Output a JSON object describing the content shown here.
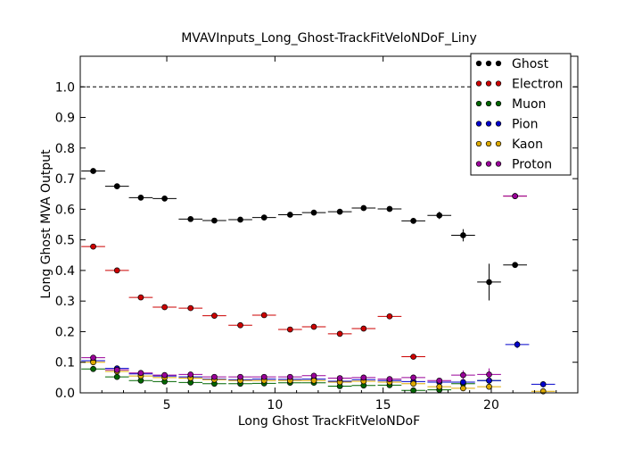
{
  "chart_data": {
    "type": "scatter",
    "title": "MVAVInputs_Long_Ghost-TrackFitVeloNDoF_Liny",
    "xlabel": "Long Ghost TrackFitVeloNDoF",
    "ylabel": "Long Ghost MVA Output",
    "xlim": [
      1,
      24
    ],
    "ylim": [
      0,
      1.1
    ],
    "xticks": [
      5,
      10,
      15,
      20
    ],
    "yticks": [
      0.0,
      0.1,
      0.2,
      0.3,
      0.4,
      0.5,
      0.6,
      0.7,
      0.8,
      0.9,
      1.0
    ],
    "reference_line": 1.0,
    "legend_position": "top-right",
    "bin_halfwidth": 0.55,
    "series": [
      {
        "name": "Ghost",
        "color": "#000000",
        "x": [
          1.6,
          2.7,
          3.8,
          4.9,
          6.1,
          7.2,
          8.4,
          9.5,
          10.7,
          11.8,
          13.0,
          14.1,
          15.3,
          16.4,
          17.6,
          18.7,
          19.9,
          21.1
        ],
        "y": [
          0.725,
          0.675,
          0.638,
          0.635,
          0.568,
          0.563,
          0.566,
          0.573,
          0.582,
          0.589,
          0.592,
          0.604,
          0.601,
          0.562,
          0.58,
          0.515,
          0.362,
          0.418
        ],
        "err": [
          0.004,
          0.004,
          0.004,
          0.004,
          0.004,
          0.004,
          0.004,
          0.004,
          0.004,
          0.004,
          0.004,
          0.004,
          0.004,
          0.006,
          0.012,
          0.02,
          0.06,
          0.006
        ]
      },
      {
        "name": "Electron",
        "color": "#cc0000",
        "x": [
          1.6,
          2.7,
          3.8,
          4.9,
          6.1,
          7.2,
          8.4,
          9.5,
          10.7,
          11.8,
          13.0,
          14.1,
          15.3,
          16.4,
          21.1
        ],
        "y": [
          0.478,
          0.4,
          0.312,
          0.28,
          0.277,
          0.252,
          0.221,
          0.254,
          0.207,
          0.216,
          0.193,
          0.21,
          0.25,
          0.118,
          0.643
        ],
        "err": [
          0.004,
          0.004,
          0.004,
          0.004,
          0.004,
          0.004,
          0.004,
          0.004,
          0.004,
          0.004,
          0.004,
          0.004,
          0.004,
          0.006,
          0.005
        ]
      },
      {
        "name": "Muon",
        "color": "#006600",
        "x": [
          1.6,
          2.7,
          3.8,
          4.9,
          6.1,
          7.2,
          8.4,
          9.5,
          10.7,
          11.8,
          13.0,
          14.1,
          15.3,
          16.4,
          17.6,
          18.7,
          19.9
        ],
        "y": [
          0.078,
          0.052,
          0.04,
          0.037,
          0.034,
          0.03,
          0.03,
          0.031,
          0.033,
          0.033,
          0.022,
          0.024,
          0.025,
          0.008,
          0.01,
          0.03,
          0.04
        ],
        "err": [
          0.003,
          0.003,
          0.003,
          0.003,
          0.003,
          0.003,
          0.003,
          0.003,
          0.003,
          0.003,
          0.003,
          0.003,
          0.003,
          0.004,
          0.006,
          0.01,
          0.015
        ]
      },
      {
        "name": "Pion",
        "color": "#0000cc",
        "x": [
          1.6,
          2.7,
          3.8,
          4.9,
          6.1,
          7.2,
          8.4,
          9.5,
          10.7,
          11.8,
          13.0,
          14.1,
          15.3,
          16.4,
          17.6,
          18.7,
          19.9,
          21.2,
          22.4
        ],
        "y": [
          0.105,
          0.08,
          0.062,
          0.055,
          0.052,
          0.045,
          0.043,
          0.045,
          0.044,
          0.045,
          0.038,
          0.043,
          0.04,
          0.037,
          0.035,
          0.035,
          0.04,
          0.158,
          0.028
        ],
        "err": [
          0.003,
          0.003,
          0.003,
          0.003,
          0.003,
          0.003,
          0.003,
          0.003,
          0.003,
          0.003,
          0.003,
          0.003,
          0.003,
          0.004,
          0.006,
          0.008,
          0.01,
          0.012,
          0.01
        ]
      },
      {
        "name": "Kaon",
        "color": "#ddaa00",
        "x": [
          1.6,
          2.7,
          3.8,
          4.9,
          6.1,
          7.2,
          8.4,
          9.5,
          10.7,
          11.8,
          13.0,
          14.1,
          15.3,
          16.4,
          17.6,
          18.7,
          19.9,
          22.4
        ],
        "y": [
          0.1,
          0.07,
          0.055,
          0.05,
          0.048,
          0.043,
          0.04,
          0.04,
          0.04,
          0.04,
          0.035,
          0.038,
          0.035,
          0.03,
          0.02,
          0.015,
          0.02,
          0.005
        ],
        "err": [
          0.003,
          0.003,
          0.003,
          0.003,
          0.003,
          0.003,
          0.003,
          0.003,
          0.003,
          0.003,
          0.003,
          0.003,
          0.003,
          0.004,
          0.005,
          0.006,
          0.008,
          0.004
        ]
      },
      {
        "name": "Proton",
        "color": "#990099",
        "x": [
          1.6,
          2.7,
          3.8,
          4.9,
          6.1,
          7.2,
          8.4,
          9.5,
          10.7,
          11.8,
          13.0,
          14.1,
          15.3,
          16.4,
          17.6,
          18.7,
          19.9,
          21.1
        ],
        "y": [
          0.115,
          0.075,
          0.065,
          0.058,
          0.06,
          0.052,
          0.052,
          0.052,
          0.052,
          0.056,
          0.048,
          0.05,
          0.045,
          0.05,
          0.04,
          0.058,
          0.06,
          0.643
        ],
        "err": [
          0.003,
          0.003,
          0.003,
          0.003,
          0.003,
          0.003,
          0.003,
          0.003,
          0.003,
          0.003,
          0.003,
          0.003,
          0.003,
          0.005,
          0.008,
          0.015,
          0.02,
          0.005
        ]
      }
    ]
  }
}
